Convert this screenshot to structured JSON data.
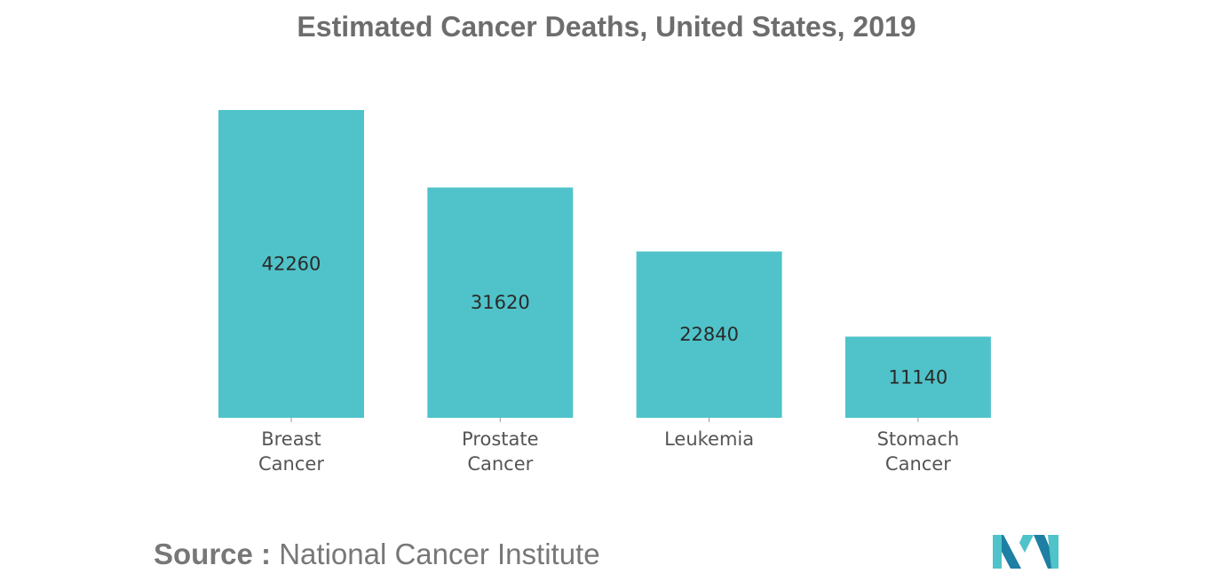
{
  "chart_data": {
    "type": "bar",
    "title": "Estimated Cancer Deaths, United States, 2019",
    "categories": [
      [
        "Breast",
        "Cancer"
      ],
      [
        "Prostate",
        "Cancer"
      ],
      [
        "Leukemia"
      ],
      [
        "Stomach",
        "Cancer"
      ]
    ],
    "values": [
      42260,
      31620,
      22840,
      11140
    ],
    "data_labels": [
      "42260",
      "31620",
      "22840",
      "11140"
    ],
    "xlabel": "",
    "ylabel": "",
    "ylim": [
      0,
      42260
    ],
    "grid": false,
    "legend": "none"
  },
  "colors": {
    "bar": "#4fc3c9",
    "title": "#6d6d6d",
    "source": "#777777",
    "logo_dark": "#1d7fa3",
    "logo_light": "#4fc3c9"
  },
  "footer": {
    "source_label": "Source :",
    "source_text": " National Cancer Institute"
  },
  "logo": {
    "icon": "company-logo-icon"
  }
}
